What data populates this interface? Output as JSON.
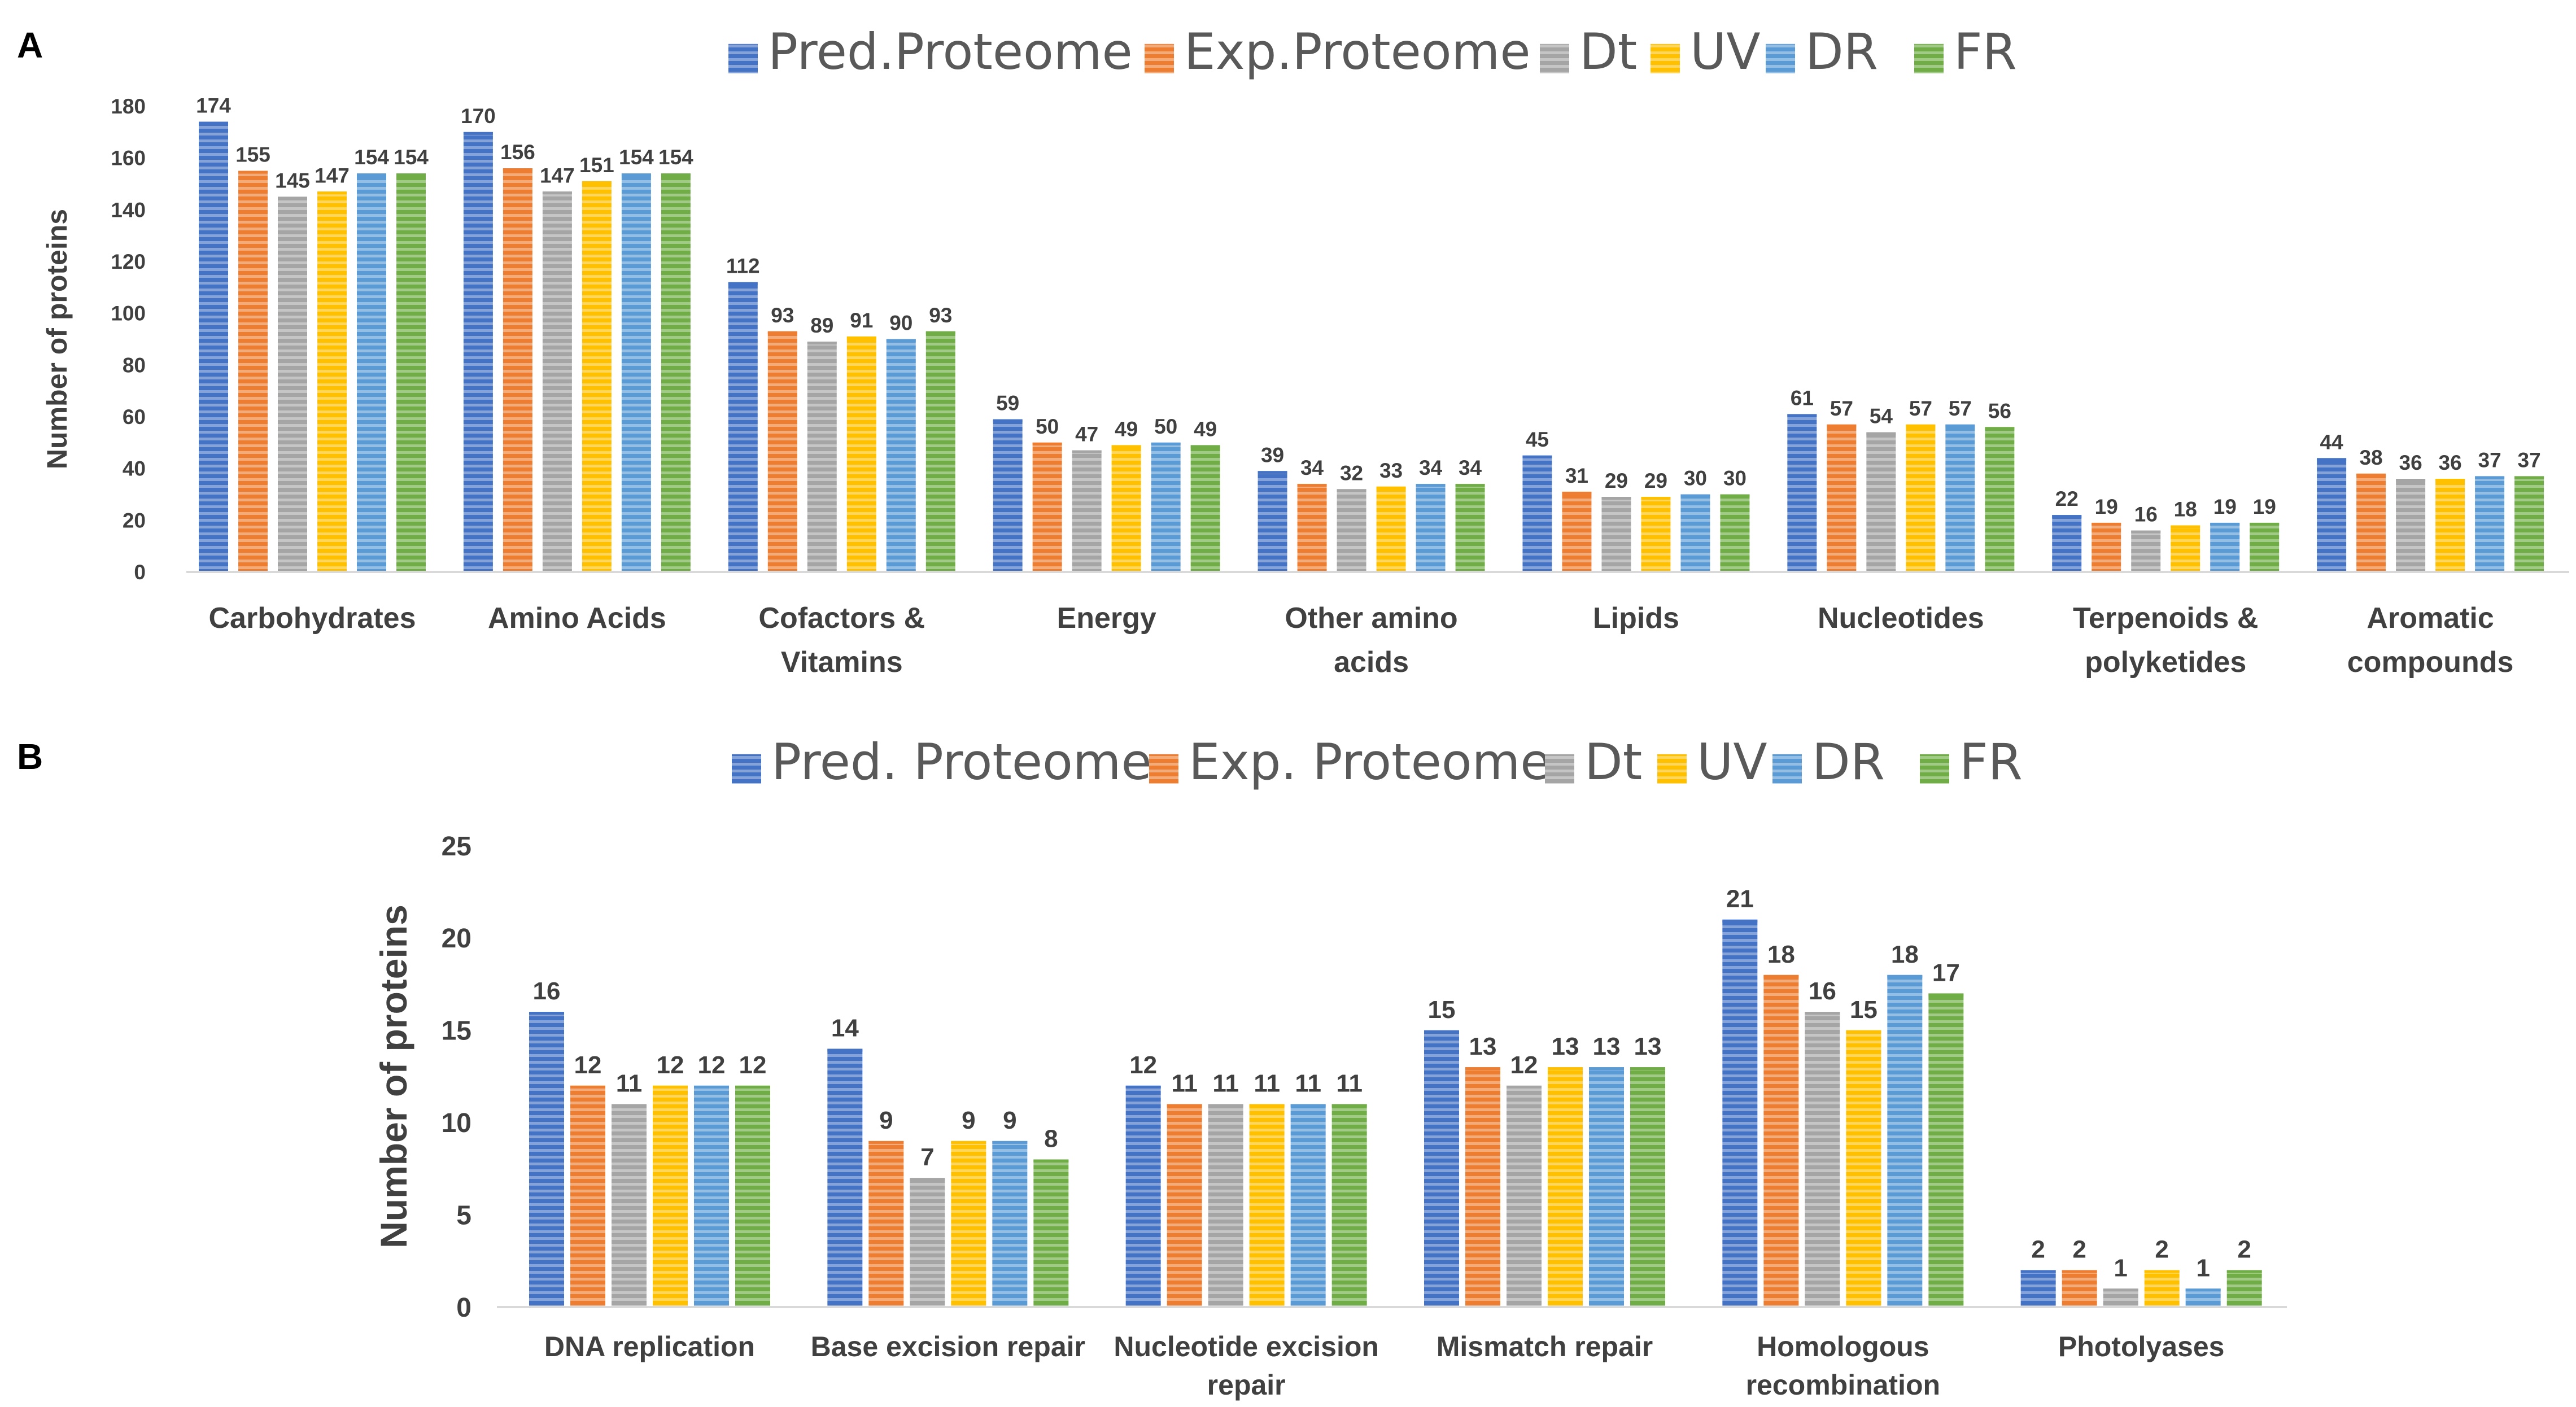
{
  "colors": {
    "Pred.Proteome": "#4472C4",
    "Exp.Proteome": "#ED7D31",
    "Dt": "#A5A5A5",
    "UV": "#FFC000",
    "DR": "#5B9BD5",
    "FR": "#70AD47",
    "axis": "#D9D9D9",
    "text": "#404040"
  },
  "chart_data": [
    {
      "panel": "A",
      "type": "bar",
      "title": "",
      "legend": [
        "Pred.Proteome",
        "Exp.Proteome",
        "Dt",
        "UV",
        "DR",
        "FR"
      ],
      "legend_position": "top",
      "categories": [
        "Carbohydrates",
        "Amino Acids",
        "Cofactors & Vitamins",
        "Energy",
        "Other amino acids",
        "Lipids",
        "Nucleotides",
        "Terpenoids & polyketides",
        "Aromatic compounds"
      ],
      "category_lines": [
        [
          "Carbohydrates"
        ],
        [
          "Amino Acids"
        ],
        [
          "Cofactors &",
          "Vitamins"
        ],
        [
          "Energy"
        ],
        [
          "Other amino",
          "acids"
        ],
        [
          "Lipids"
        ],
        [
          "Nucleotides"
        ],
        [
          "Terpenoids &",
          "polyketides"
        ],
        [
          "Aromatic",
          "compounds"
        ]
      ],
      "series": [
        {
          "name": "Pred.Proteome",
          "values": [
            174,
            170,
            112,
            59,
            39,
            45,
            61,
            22,
            44
          ]
        },
        {
          "name": "Exp.Proteome",
          "values": [
            155,
            156,
            93,
            50,
            34,
            31,
            57,
            19,
            38
          ]
        },
        {
          "name": "Dt",
          "values": [
            145,
            147,
            89,
            47,
            32,
            29,
            54,
            16,
            36
          ]
        },
        {
          "name": "UV",
          "values": [
            147,
            151,
            91,
            49,
            33,
            29,
            57,
            18,
            36
          ]
        },
        {
          "name": "DR",
          "values": [
            154,
            154,
            90,
            50,
            34,
            30,
            57,
            19,
            37
          ]
        },
        {
          "name": "FR",
          "values": [
            154,
            154,
            93,
            49,
            34,
            30,
            56,
            19,
            37
          ]
        }
      ],
      "xlabel": "",
      "ylabel": "Number of proteins",
      "ylim": [
        0,
        180
      ],
      "yticks": [
        0,
        20,
        40,
        60,
        80,
        100,
        120,
        140,
        160,
        180
      ],
      "grid": false
    },
    {
      "panel": "B",
      "type": "bar",
      "title": "",
      "legend": [
        "Pred. Proteome",
        "Exp. Proteome",
        "Dt",
        "UV",
        "DR",
        "FR"
      ],
      "legend_position": "top",
      "categories": [
        "DNA replication",
        "Base excision repair",
        "Nucleotide excision repair",
        "Mismatch repair",
        "Homologous recombination",
        "Photolyases"
      ],
      "category_lines": [
        [
          "DNA replication"
        ],
        [
          "Base excision repair"
        ],
        [
          "Nucleotide excision",
          "repair"
        ],
        [
          "Mismatch repair"
        ],
        [
          "Homologous",
          "recombination"
        ],
        [
          "Photolyases"
        ]
      ],
      "series": [
        {
          "name": "Pred. Proteome",
          "values": [
            16,
            14,
            12,
            15,
            21,
            2
          ]
        },
        {
          "name": "Exp. Proteome",
          "values": [
            12,
            9,
            11,
            13,
            18,
            2
          ]
        },
        {
          "name": "Dt",
          "values": [
            11,
            7,
            11,
            12,
            16,
            1
          ]
        },
        {
          "name": "UV",
          "values": [
            12,
            9,
            11,
            13,
            15,
            2
          ]
        },
        {
          "name": "DR",
          "values": [
            12,
            9,
            11,
            13,
            18,
            1
          ]
        },
        {
          "name": "FR",
          "values": [
            12,
            8,
            11,
            13,
            17,
            2
          ]
        }
      ],
      "xlabel": "",
      "ylabel": "Number of proteins",
      "ylim": [
        0,
        25
      ],
      "yticks": [
        0,
        5,
        10,
        15,
        20,
        25
      ],
      "grid": false
    }
  ]
}
